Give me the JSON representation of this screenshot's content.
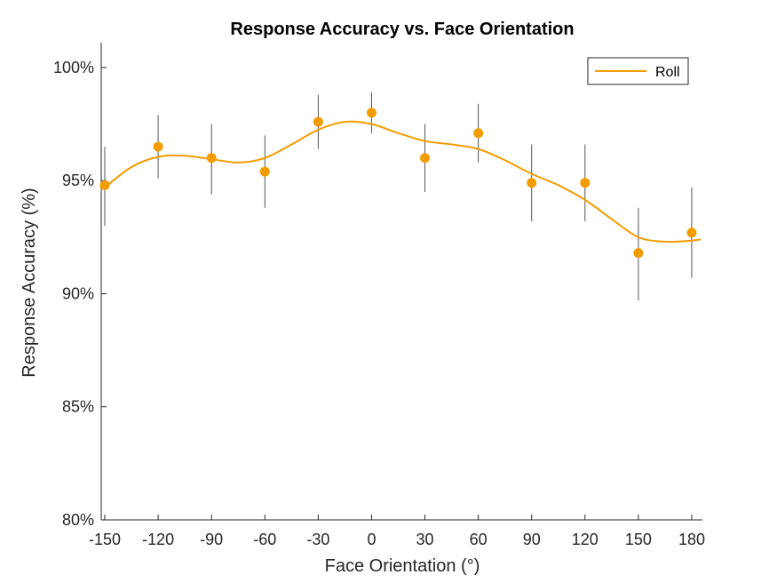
{
  "chart_data": {
    "type": "line",
    "title": "Response Accuracy vs. Face Orientation",
    "xlabel": "Face Orientation (°)",
    "ylabel": "Response Accuracy (%)",
    "xlim": [
      -152,
      186
    ],
    "ylim": [
      80,
      101.1
    ],
    "x_ticks": [
      -150,
      -120,
      -90,
      -60,
      -30,
      0,
      30,
      60,
      90,
      120,
      150,
      180
    ],
    "x_tick_labels": [
      "-150",
      "-120",
      "-90",
      "-60",
      "-30",
      "0",
      "30",
      "60",
      "90",
      "120",
      "150",
      "180"
    ],
    "y_ticks": [
      80,
      85,
      90,
      95,
      100
    ],
    "y_tick_labels": [
      "80%",
      "85%",
      "90%",
      "95%",
      "100%"
    ],
    "legend_position": "top-right",
    "grid": false,
    "series": [
      {
        "name": "Roll",
        "color": "#F39C00",
        "points": {
          "x": [
            -150,
            -120,
            -90,
            -60,
            -30,
            0,
            30,
            60,
            90,
            120,
            150,
            180
          ],
          "y": [
            94.8,
            96.5,
            96.0,
            95.4,
            97.6,
            98.0,
            96.0,
            97.1,
            94.9,
            94.9,
            91.8,
            92.7
          ],
          "err_low": [
            93.0,
            95.1,
            94.4,
            93.8,
            96.4,
            97.1,
            94.5,
            95.8,
            93.2,
            93.2,
            89.7,
            90.7
          ],
          "err_high": [
            96.5,
            97.9,
            97.5,
            97.0,
            98.8,
            98.9,
            97.5,
            98.4,
            96.6,
            96.6,
            93.8,
            94.7
          ]
        },
        "fit": {
          "x": [
            -150,
            -135,
            -120,
            -105,
            -90,
            -75,
            -60,
            -45,
            -30,
            -15,
            0,
            15,
            30,
            45,
            60,
            75,
            90,
            105,
            120,
            135,
            150,
            165,
            180,
            185
          ],
          "y": [
            94.7,
            95.6,
            96.05,
            96.1,
            95.95,
            95.8,
            96.0,
            96.6,
            97.25,
            97.6,
            97.5,
            97.1,
            96.75,
            96.6,
            96.4,
            95.9,
            95.3,
            94.8,
            94.15,
            93.3,
            92.5,
            92.3,
            92.35,
            92.4
          ]
        }
      }
    ]
  }
}
